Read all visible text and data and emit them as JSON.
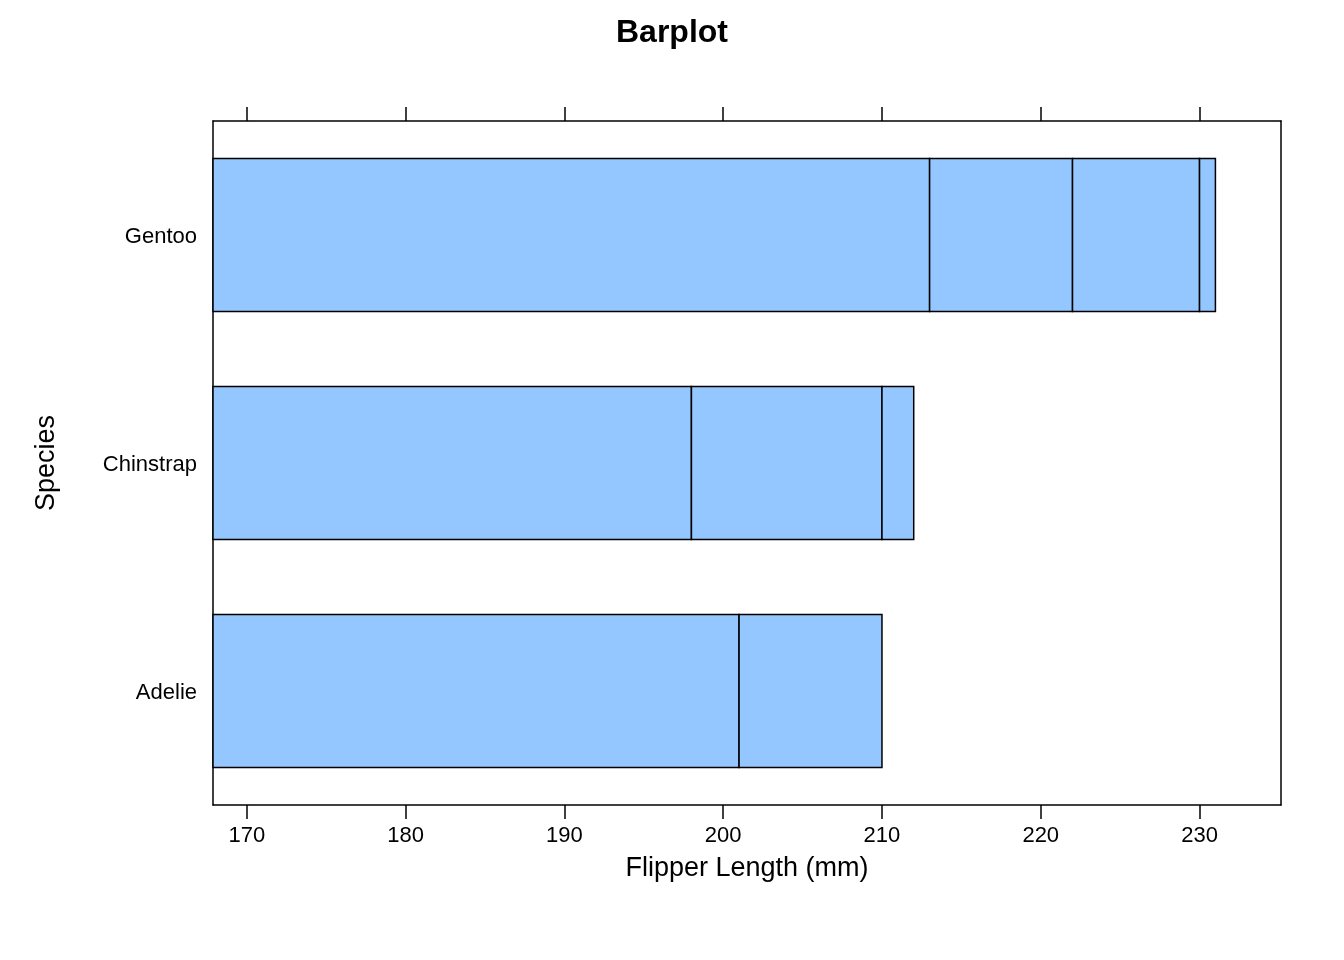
{
  "chart_data": {
    "type": "bar",
    "title": "Barplot",
    "xlabel": "Flipper Length (mm)",
    "ylabel": "Species",
    "orientation": "horizontal",
    "stacked": true,
    "categories": [
      "Gentoo",
      "Chinstrap",
      "Adelie"
    ],
    "series": [
      {
        "color": "#94c6ff",
        "values": [
          213,
          198,
          201
        ]
      },
      {
        "color": "#94c6ff",
        "base": [
          213,
          198,
          201
        ],
        "values": [
          9,
          12,
          9
        ]
      },
      {
        "color": "#94c6ff",
        "base": [
          222,
          210,
          null
        ],
        "values": [
          8,
          2,
          null
        ]
      },
      {
        "color": "#94c6ff",
        "base": [
          230,
          null,
          null
        ],
        "values": [
          1,
          null,
          null
        ]
      }
    ],
    "xlim": [
      167.87,
      235.13
    ],
    "xticks": [
      170,
      180,
      190,
      200,
      210,
      220,
      230
    ],
    "grid": false
  }
}
